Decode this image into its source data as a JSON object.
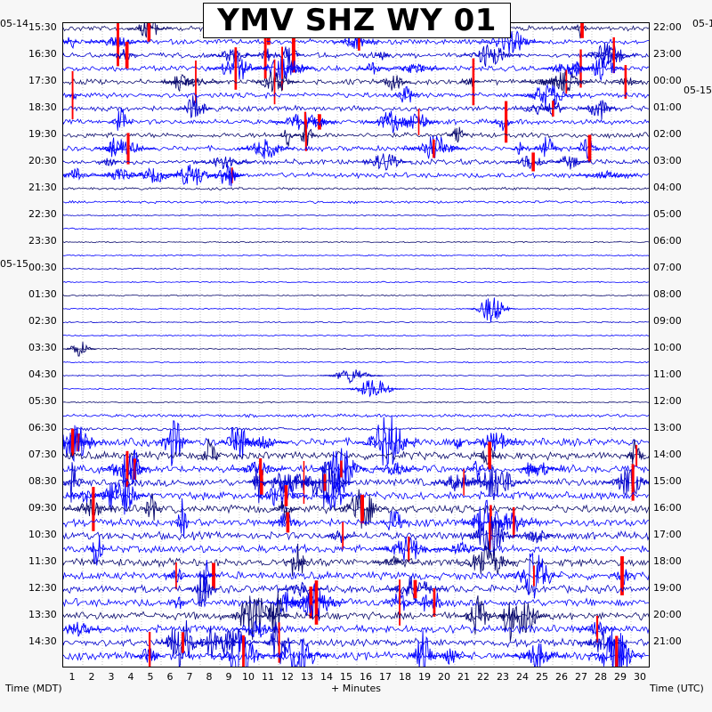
{
  "title": "YMV SHZ WY 01",
  "chart_data": {
    "type": "helicorder",
    "title": "YMV SHZ WY 01",
    "xlabel": "+ Minutes",
    "left_axis_label": "Time (MDT)",
    "right_axis_label": "Time (UTC)",
    "x_ticks": [
      "1",
      "2",
      "3",
      "4",
      "5",
      "6",
      "7",
      "8",
      "9",
      "10",
      "11",
      "12",
      "13",
      "14",
      "15",
      "16",
      "17",
      "18",
      "19",
      "20",
      "21",
      "22",
      "23",
      "24",
      "25",
      "26",
      "27",
      "28",
      "29",
      "30"
    ],
    "xlim": [
      0,
      30
    ],
    "left_times": [
      "15:30",
      "16:30",
      "17:30",
      "18:30",
      "19:30",
      "20:30",
      "21:30",
      "22:30",
      "23:30",
      "00:30",
      "01:30",
      "02:30",
      "03:30",
      "04:30",
      "05:30",
      "06:30",
      "07:30",
      "08:30",
      "09:30",
      "10:30",
      "11:30",
      "12:30",
      "13:30",
      "14:30"
    ],
    "right_times": [
      "22:00",
      "23:00",
      "00:00",
      "01:00",
      "02:00",
      "03:00",
      "04:00",
      "05:00",
      "06:00",
      "07:00",
      "08:00",
      "09:00",
      "10:00",
      "11:00",
      "12:00",
      "13:00",
      "14:00",
      "15:00",
      "16:00",
      "17:00",
      "18:00",
      "19:00",
      "20:00",
      "21:00"
    ],
    "left_dates": [
      "05-14",
      "05-15"
    ],
    "right_dates": [
      "05-1",
      "05-15"
    ],
    "trace_colors": [
      "#0a0a6e",
      "#0000ff",
      "#0000cd",
      "#0000ff"
    ],
    "clip_color": "#ff0000",
    "activity_note_hours": {
      "quiet": [
        "22:30",
        "23:30",
        "00:30",
        "01:30",
        "02:30",
        "03:30",
        "04:30"
      ],
      "busy": [
        "15:30",
        "16:30",
        "17:30",
        "06:30",
        "07:30",
        "08:30",
        "09:30",
        "10:30",
        "11:30",
        "12:30",
        "13:30",
        "14:30"
      ]
    }
  }
}
